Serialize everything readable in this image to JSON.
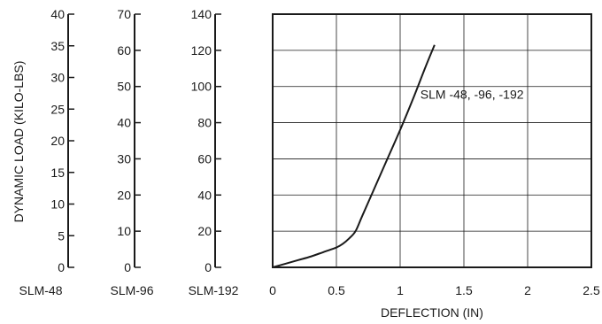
{
  "chart_data": {
    "type": "line",
    "xlabel": "DEFLECTION (IN)",
    "ylabel": "DYNAMIC LOAD (KILO-LBS)",
    "xlim": [
      0,
      2.5
    ],
    "x_ticks": [
      "0",
      "0.5",
      "1",
      "1.5",
      "2",
      "2.5"
    ],
    "grid": true,
    "y_axes": [
      {
        "name": "SLM-48",
        "ylim": [
          0,
          40
        ],
        "ticks": [
          "0",
          "5",
          "10",
          "15",
          "20",
          "25",
          "30",
          "35",
          "40"
        ]
      },
      {
        "name": "SLM-96",
        "ylim": [
          0,
          70
        ],
        "ticks": [
          "0",
          "10",
          "20",
          "30",
          "40",
          "50",
          "60",
          "70"
        ]
      },
      {
        "name": "SLM-192",
        "ylim": [
          0,
          140
        ],
        "ticks": [
          "0",
          "20",
          "40",
          "60",
          "80",
          "100",
          "120",
          "140"
        ]
      }
    ],
    "series": [
      {
        "name": "SLM -48, -96, -192",
        "axis": "SLM-192",
        "x": [
          0,
          0.1,
          0.2,
          0.3,
          0.4,
          0.5,
          0.55,
          0.6,
          0.65,
          0.7,
          0.8,
          0.9,
          1.0,
          1.1,
          1.2,
          1.27
        ],
        "y": [
          0,
          2,
          4,
          6,
          8.5,
          11,
          13,
          16,
          20,
          28,
          44,
          60,
          76,
          93,
          111,
          123
        ]
      }
    ]
  }
}
